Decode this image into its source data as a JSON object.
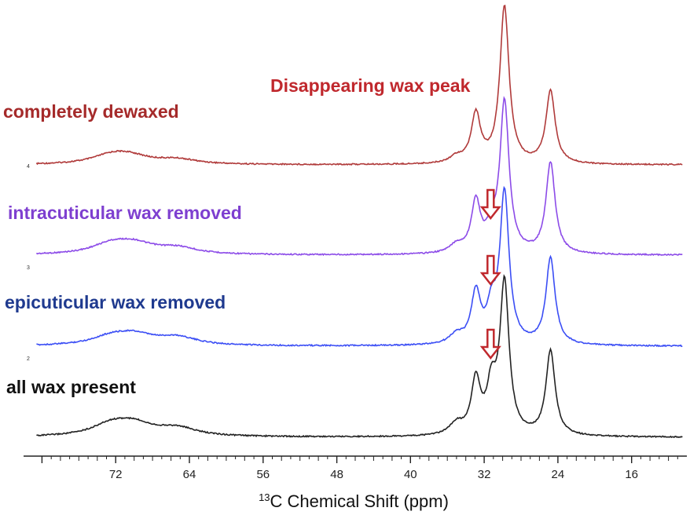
{
  "chart_data": {
    "type": "line",
    "x_axis": {
      "label_superscript": "13",
      "label_text": "C Chemical Shift (ppm)",
      "reversed": true,
      "xlim": [
        82,
        10
      ],
      "ticks": [
        72,
        64,
        56,
        48,
        40,
        32,
        24,
        16
      ]
    },
    "annotation": {
      "text": "Disappearing wax peak",
      "color": "#c0282d"
    },
    "series": [
      {
        "name": "completely dewaxed",
        "index_label": "4",
        "color": "#b03a3a",
        "arrow": false,
        "peaks": [
          {
            "ppm": 72.5,
            "height": 0.05
          },
          {
            "ppm": 70.5,
            "height": 0.045
          },
          {
            "ppm": 65.3,
            "height": 0.03
          },
          {
            "ppm": 35.0,
            "height": 0.04
          },
          {
            "ppm": 32.9,
            "height": 0.31
          },
          {
            "ppm": 31.2,
            "height": 0.0
          },
          {
            "ppm": 29.8,
            "height": 1.0
          },
          {
            "ppm": 24.8,
            "height": 0.46
          }
        ]
      },
      {
        "name": "intracuticular wax removed",
        "index_label": "3",
        "color": "#8c4be8",
        "arrow": true,
        "peaks": [
          {
            "ppm": 72.5,
            "height": 0.06
          },
          {
            "ppm": 70.0,
            "height": 0.06
          },
          {
            "ppm": 65.3,
            "height": 0.04
          },
          {
            "ppm": 35.0,
            "height": 0.05
          },
          {
            "ppm": 32.9,
            "height": 0.32
          },
          {
            "ppm": 31.2,
            "height": 0.13
          },
          {
            "ppm": 29.8,
            "height": 0.96
          },
          {
            "ppm": 24.8,
            "height": 0.58
          }
        ]
      },
      {
        "name": "epicuticular wax removed",
        "index_label": "2",
        "color": "#3b4ef5",
        "arrow": true,
        "peaks": [
          {
            "ppm": 72.5,
            "height": 0.05
          },
          {
            "ppm": 70.0,
            "height": 0.06
          },
          {
            "ppm": 65.3,
            "height": 0.05
          },
          {
            "ppm": 35.0,
            "height": 0.06
          },
          {
            "ppm": 32.9,
            "height": 0.32
          },
          {
            "ppm": 31.2,
            "height": 0.2
          },
          {
            "ppm": 29.8,
            "height": 0.96
          },
          {
            "ppm": 24.8,
            "height": 0.55
          }
        ]
      },
      {
        "name": "all wax present",
        "index_label": "",
        "color": "#222222",
        "arrow": true,
        "peaks": [
          {
            "ppm": 72.5,
            "height": 0.07
          },
          {
            "ppm": 70.0,
            "height": 0.07
          },
          {
            "ppm": 65.3,
            "height": 0.05
          },
          {
            "ppm": 35.0,
            "height": 0.07
          },
          {
            "ppm": 32.9,
            "height": 0.34
          },
          {
            "ppm": 31.2,
            "height": 0.28
          },
          {
            "ppm": 29.8,
            "height": 0.96
          },
          {
            "ppm": 24.8,
            "height": 0.54
          }
        ]
      }
    ]
  }
}
